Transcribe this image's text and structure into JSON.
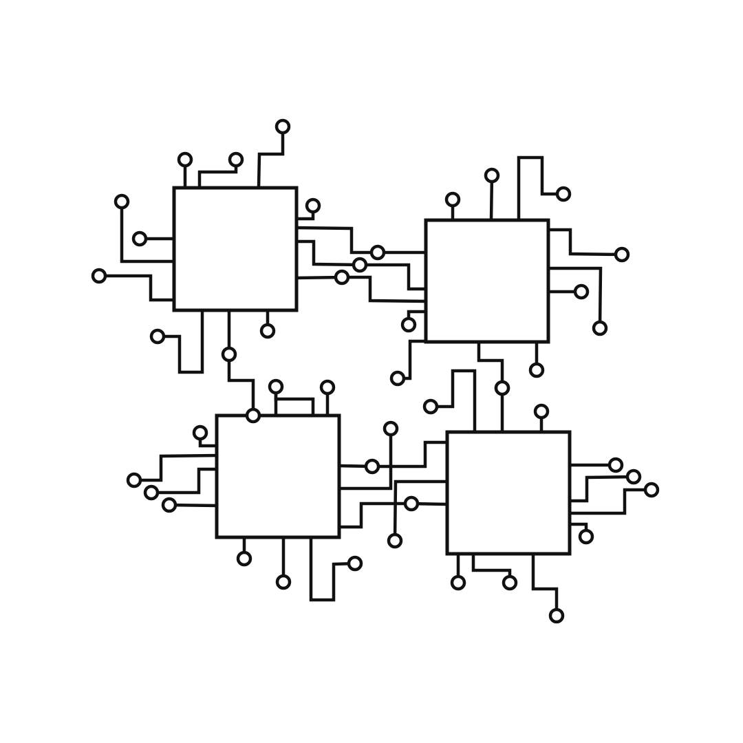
{
  "colors": {
    "background": "#ffffff",
    "stroke": "#111111"
  },
  "icons": {
    "chip": "chip-icon",
    "pad": "connector-pad-icon"
  }
}
